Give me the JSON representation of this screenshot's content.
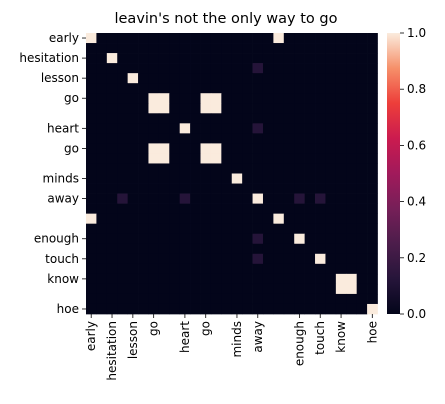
{
  "chart_data": {
    "type": "heatmap",
    "title": "leavin's not the only way to go",
    "labels": [
      "early",
      "hesitation",
      "lesson",
      "go",
      "heart",
      "go",
      "minds",
      "away",
      "enough",
      "touch",
      "know",
      "hoe"
    ],
    "x_tick_labels": [
      "early",
      "hesitation",
      "lesson",
      "go",
      "heart",
      "go",
      "minds",
      "away",
      "enough",
      "touch",
      "know",
      "hoe"
    ],
    "y_tick_labels": [
      "early",
      "hesitation",
      "lesson",
      "go",
      "heart",
      "go",
      "minds",
      "away",
      "enough",
      "touch",
      "know",
      "hoe"
    ],
    "word_sequence": [
      "early",
      "",
      "hesitation",
      "",
      "lesson",
      "",
      "go",
      "go",
      "",
      "heart",
      "",
      "go",
      "go",
      "",
      "minds",
      "",
      "away",
      "",
      "early",
      "",
      "enough",
      "",
      "touch",
      "",
      "know",
      "know",
      "",
      "hoe"
    ],
    "x_tick_indices": [
      0,
      2,
      4,
      6,
      9,
      11,
      14,
      16,
      20,
      22,
      24,
      27
    ],
    "y_tick_indices": [
      0,
      2,
      4,
      6,
      9,
      11,
      14,
      16,
      20,
      22,
      24,
      27
    ],
    "extra_cells": [
      {
        "row": 3,
        "col": 16,
        "value": 0.12
      },
      {
        "row": 16,
        "col": 3,
        "value": 0.12
      },
      {
        "row": 16,
        "col": 20,
        "value": 0.12
      },
      {
        "row": 20,
        "col": 16,
        "value": 0.12
      },
      {
        "row": 3,
        "col": 20,
        "value": 0.0
      },
      {
        "row": 20,
        "col": 3,
        "value": 0.0
      },
      {
        "row": 9,
        "col": 16,
        "value": 0.12
      },
      {
        "row": 16,
        "col": 9,
        "value": 0.12
      },
      {
        "row": 22,
        "col": 16,
        "value": 0.12
      },
      {
        "row": 16,
        "col": 22,
        "value": 0.12
      }
    ],
    "colorbar": {
      "min": 0.0,
      "max": 1.0,
      "tick_values": [
        0.0,
        0.2,
        0.4,
        0.6,
        0.8,
        1.0
      ],
      "tick_labels": [
        "0.0",
        "0.2",
        "0.4",
        "0.6",
        "0.8",
        "1.0"
      ]
    },
    "colormap": "rocket",
    "grid": false
  }
}
